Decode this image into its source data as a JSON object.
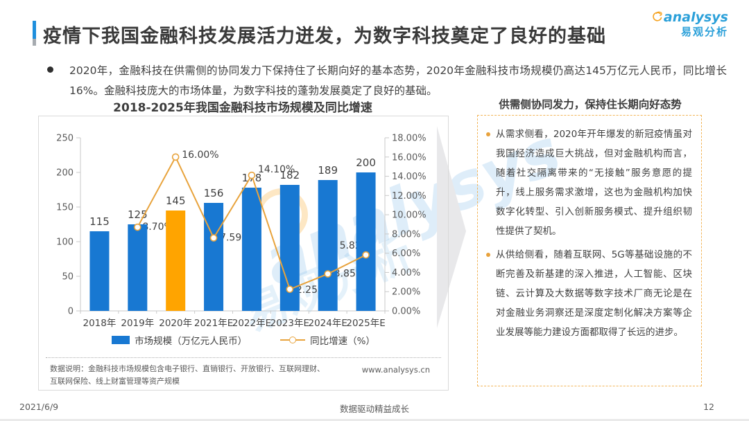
{
  "header": {
    "title": "疫情下我国金融科技发展活力迸发，为数字科技奠定了良好的基础",
    "accent_color_top": "#1E8FDD",
    "accent_color_bottom": "#A6ABB0",
    "logo": {
      "brand": "analysys",
      "brand_cn": "易观分析",
      "brand_blue": "#2BA0D9",
      "brand_orange": "#F5A11C"
    }
  },
  "summary": {
    "text": "2020年，金融科技在供需侧的协同发力下保持住了长期向好的基本态势，2020年金融科技市场规模仍高达145万亿元人民币，同比增长16%。金融科技庞大的市场体量，为数字科技的蓬勃发展奠定了良好的基础。"
  },
  "chart_data": {
    "type": "bar",
    "title": "2018-2025年我国金融科技市场规模及同比增速",
    "categories": [
      "2018年",
      "2019年",
      "2020年",
      "2021年E",
      "2022年E",
      "2023年E",
      "2024年E",
      "2025年E"
    ],
    "series": [
      {
        "name": "市场规模（万亿元人民币）",
        "type": "bar",
        "axis": "left",
        "values": [
          115,
          125,
          145,
          156,
          178,
          182,
          189,
          200
        ],
        "labels": [
          "115",
          "125",
          "145",
          "156",
          "178",
          "182",
          "189",
          "200"
        ],
        "color": "#1878D2",
        "highlight_index": 2,
        "highlight_color": "#FFA400"
      },
      {
        "name": "同比增速（%）",
        "type": "line",
        "axis": "right",
        "values": [
          null,
          8.7,
          16.0,
          7.59,
          14.1,
          2.25,
          3.85,
          5.82
        ],
        "labels": [
          null,
          "8.70%",
          "16.00%",
          "7.59%",
          "14.10%",
          "2.25%",
          "3.85%",
          "5.82%"
        ],
        "color": "#E8A33C",
        "marker": "circle-white-fill"
      }
    ],
    "left_axis": {
      "min": 0,
      "max": 250,
      "step": 50,
      "ticks": [
        "0",
        "50",
        "100",
        "150",
        "200",
        "250"
      ]
    },
    "right_axis": {
      "min": 0,
      "max": 18,
      "step": 2,
      "ticks": [
        "0.00%",
        "2.00%",
        "4.00%",
        "6.00%",
        "8.00%",
        "10.00%",
        "12.00%",
        "14.00%",
        "16.00%",
        "18.00%"
      ]
    },
    "grid": false,
    "legend_position": "bottom",
    "axis_color": "#C9C9C9",
    "footnote": "数据说明：金融科技市场规模包含电子银行、直销银行、开放银行、互联网理财、互联网保险、线上财富管理等资产规模",
    "source_url": "www.analysys.cn",
    "watermark": {
      "text": "analysys",
      "text_cn": "易观分析"
    }
  },
  "panel": {
    "title": "供需侧协同发力，保持住长期向好态势",
    "border_color": "#F2B456",
    "bullets": [
      "从需求侧看，2020年开年爆发的新冠疫情虽对我国经济造成巨大挑战，但对金融机构而言，随着社交隔离带来的“无接触”服务意愿的提升，线上服务需求激增，这也为金融机构加快数字化转型、引入创新服务模式、提升组织韧性提供了契机。",
      "从供给侧看，随着互联网、5G等基础设施的不断完善及新基建的深入推进，人工智能、区块链、云计算及大数据等数字技术厂商无论是在对金融业务洞察还是深度定制化解决方案等企业发展等能力建设方面都取得了长远的进步。"
    ]
  },
  "footer": {
    "date": "2021/6/9",
    "slogan": "数据驱动精益成长",
    "page": "12"
  }
}
